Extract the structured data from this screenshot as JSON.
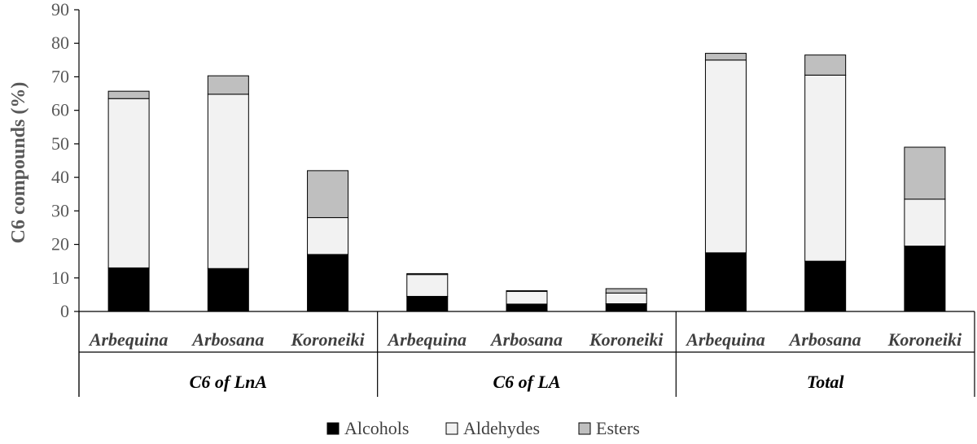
{
  "chart_data": {
    "type": "bar",
    "stacked": true,
    "ylabel": "C6 compounds (%)",
    "ylim": [
      0,
      90
    ],
    "yticks": [
      0,
      10,
      20,
      30,
      40,
      50,
      60,
      70,
      80,
      90
    ],
    "groups": [
      {
        "label": "C6 of LnA",
        "categories": [
          "Arbequina",
          "Arbosana",
          "Koroneiki"
        ]
      },
      {
        "label": "C6 of LA",
        "categories": [
          "Arbequina",
          "Arbosana",
          "Koroneiki"
        ]
      },
      {
        "label": "Total",
        "categories": [
          "Arbequina",
          "Arbosana",
          "Koroneiki"
        ]
      }
    ],
    "series": [
      {
        "name": "Alcohols",
        "color": "#000000",
        "values": [
          13,
          12.8,
          17,
          4.5,
          2.2,
          2.3,
          17.5,
          15,
          19.5
        ]
      },
      {
        "name": "Aldehydes",
        "color": "#f2f2f2",
        "values": [
          50.5,
          52,
          11,
          6.5,
          3.8,
          3.2,
          57.5,
          55.5,
          14
        ]
      },
      {
        "name": "Esters",
        "color": "#bfbfbf",
        "values": [
          2.2,
          5.5,
          14,
          0.3,
          0.2,
          1.3,
          2,
          6,
          15.5
        ]
      }
    ],
    "legend_position": "bottom",
    "grid": false
  }
}
